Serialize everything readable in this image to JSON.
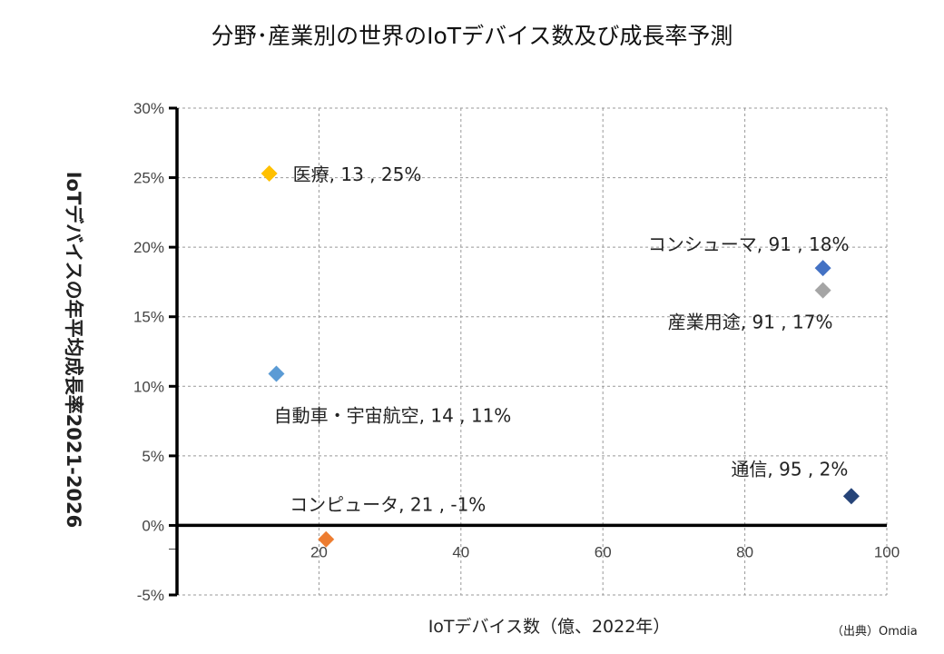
{
  "chart_data": {
    "type": "scatter",
    "title": "分野･産業別の世界のIoTデバイス数及び成長率予測",
    "xlabel": "IoTデバイス数（億、2022年）",
    "ylabel": "IoTデバイスの年平均成長率2021-2026",
    "xlim": [
      0,
      100
    ],
    "ylim": [
      -5,
      30
    ],
    "x_ticks": [
      "20",
      "40",
      "60",
      "80",
      "100"
    ],
    "y_ticks": [
      "-5%",
      "0%",
      "5%",
      "10%",
      "15%",
      "20%",
      "25%",
      "30%"
    ],
    "grid": true,
    "points": [
      {
        "name": "医療",
        "x": 13,
        "y": 25.3,
        "label": "医療, 13 , 25%",
        "color": "#FFC000"
      },
      {
        "name": "コンシューマ",
        "x": 91,
        "y": 18.5,
        "label": "コンシューマ, 91 , 18%",
        "color": "#4472C4"
      },
      {
        "name": "産業用途",
        "x": 91,
        "y": 16.9,
        "label": "産業用途, 91 , 17%",
        "color": "#A5A5A5"
      },
      {
        "name": "自動車・宇宙航空",
        "x": 14,
        "y": 10.9,
        "label": "自動車・宇宙航空, 14 , 11%",
        "color": "#5B9BD5"
      },
      {
        "name": "通信",
        "x": 95,
        "y": 2.1,
        "label": "通信, 95 , 2%",
        "color": "#264478"
      },
      {
        "name": "コンピュータ",
        "x": 21,
        "y": -1,
        "label": "コンピュータ, 21 , -1%",
        "color": "#ED7D31"
      }
    ]
  },
  "source": "（出典）Omdia"
}
